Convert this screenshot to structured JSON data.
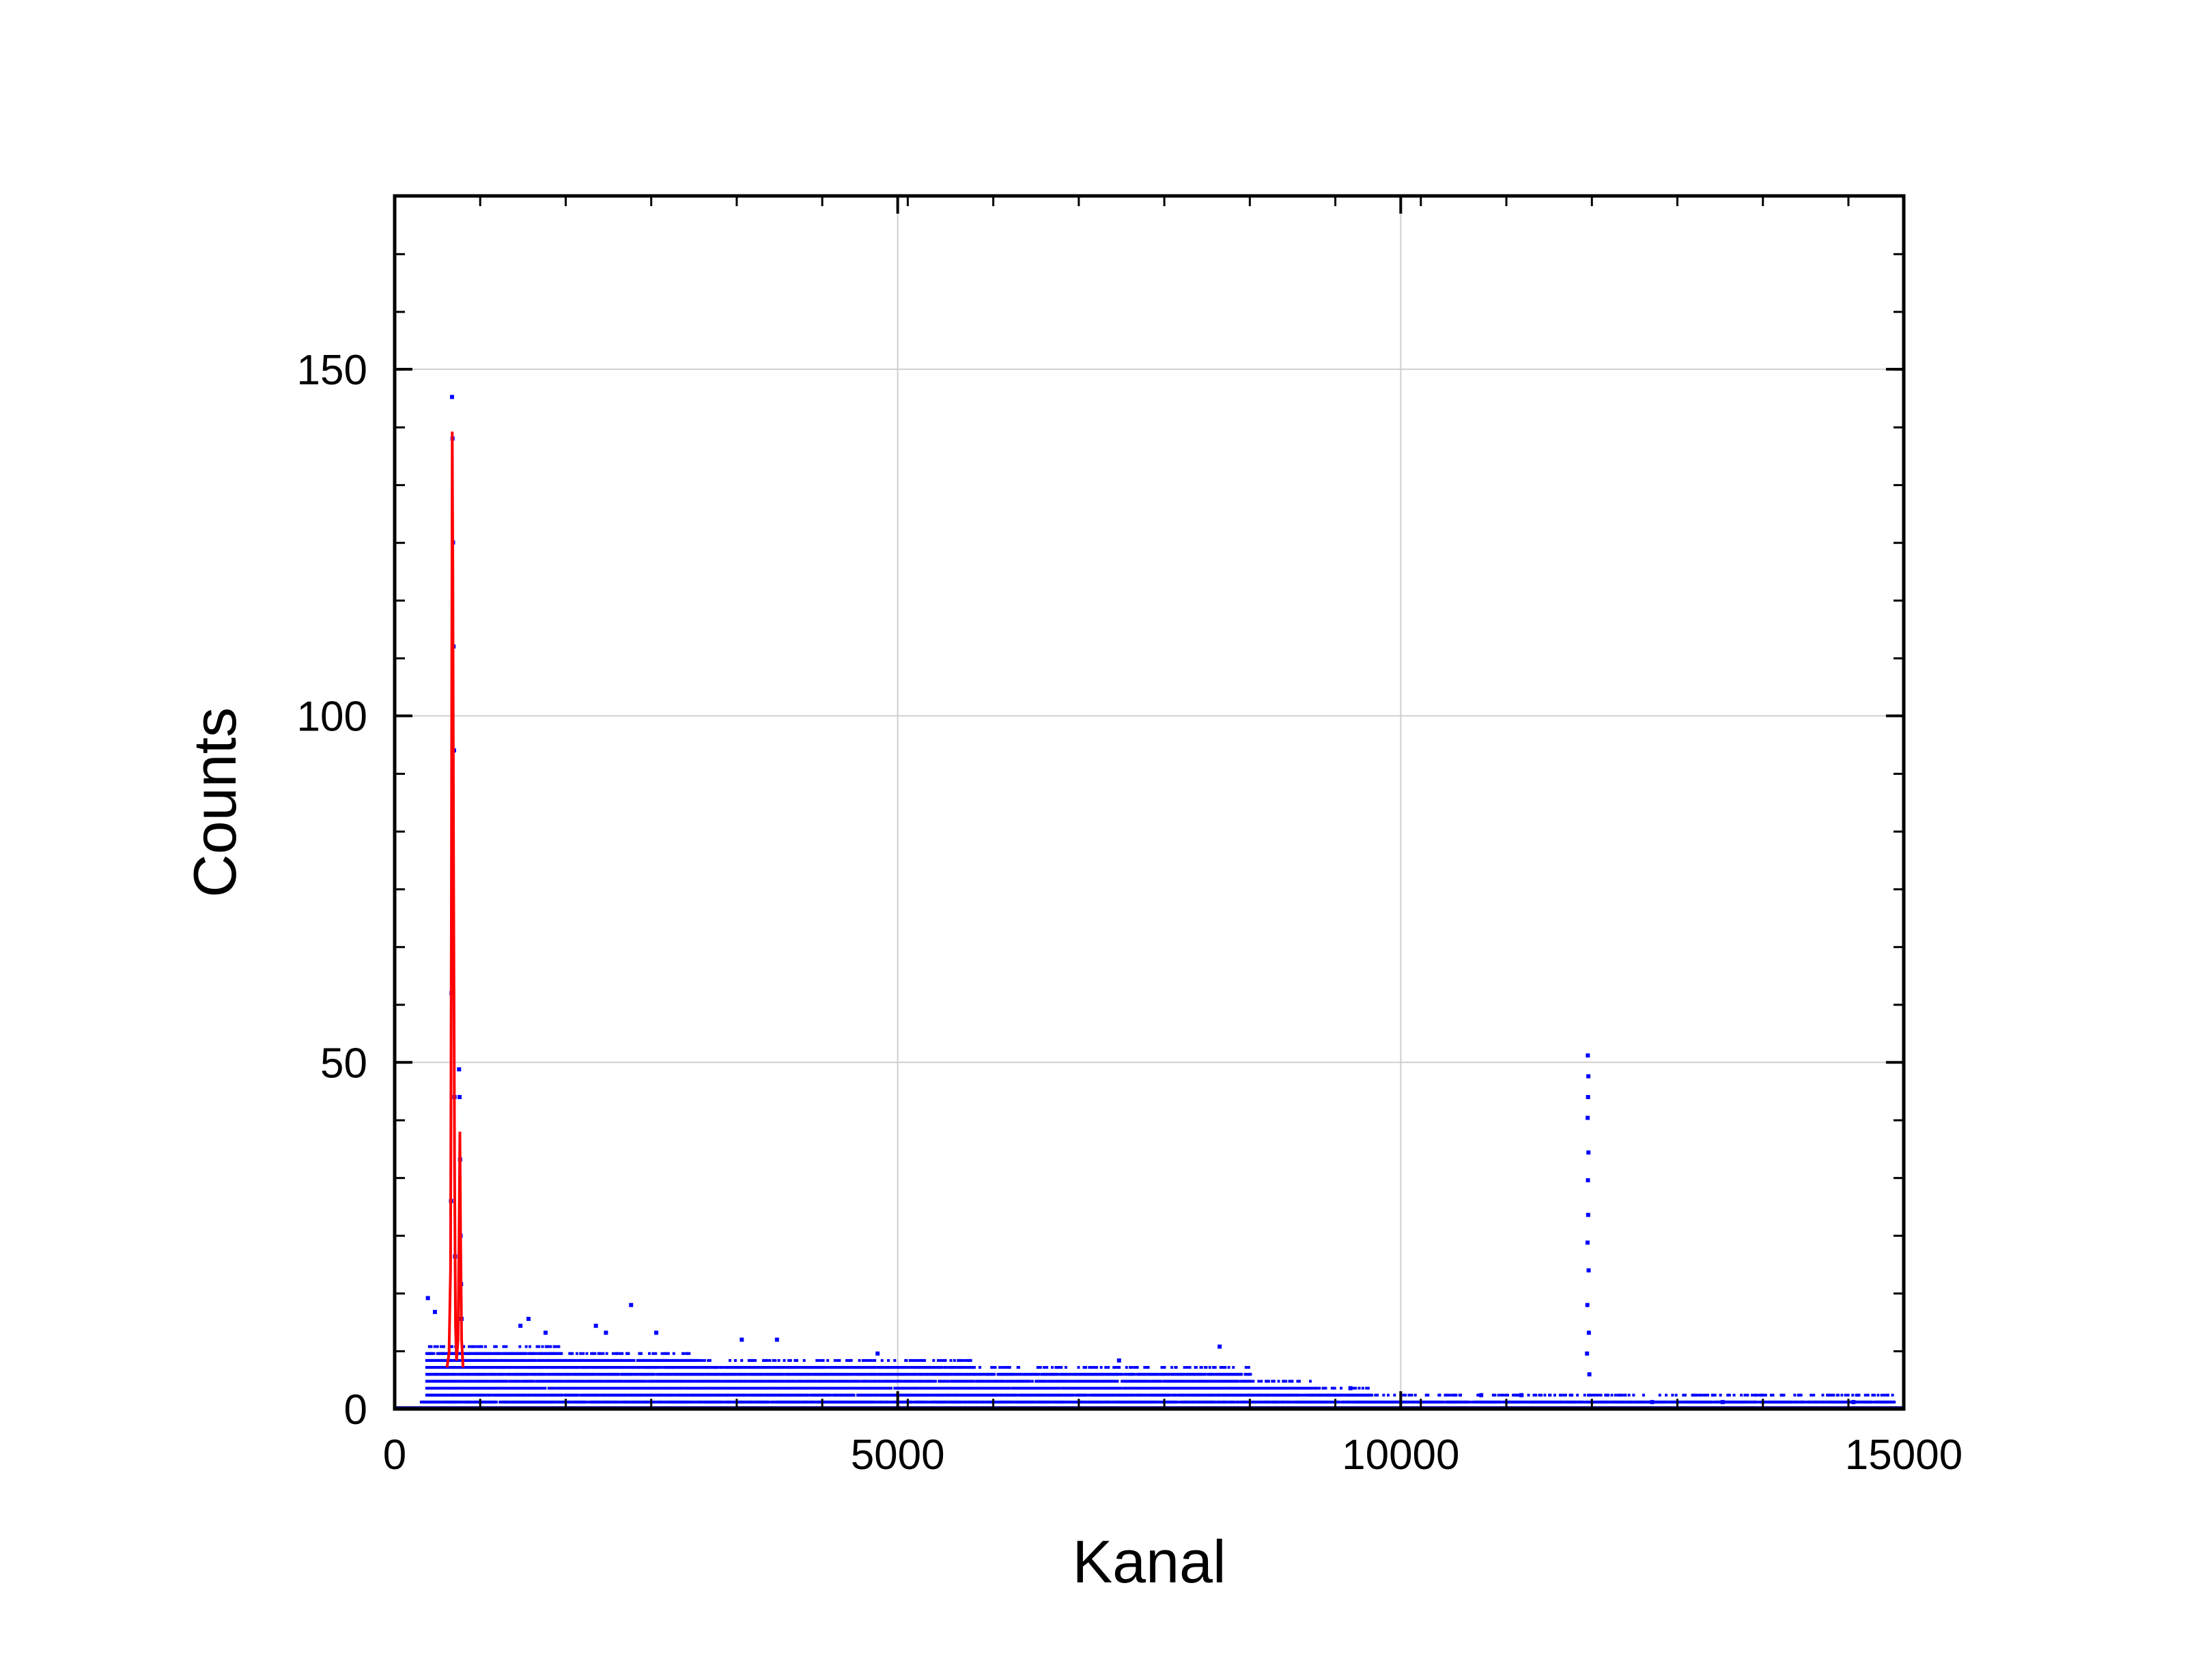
{
  "chart_data": {
    "type": "scatter",
    "xlabel": "Kanal",
    "ylabel": "Counts",
    "xlim": [
      0,
      15000
    ],
    "ylim": [
      0,
      175
    ],
    "x_ticks": [
      0,
      5000,
      10000,
      15000
    ],
    "y_ticks": [
      0,
      50,
      100,
      150
    ],
    "x_tick_labels": [
      "0",
      "5000",
      "10000",
      "15000"
    ],
    "y_tick_labels": [
      "0",
      "50",
      "100",
      "150"
    ],
    "x_minor_step": 850,
    "y_minor_step": 8.33,
    "grid": true,
    "legend": "none",
    "series": [
      {
        "style": "points",
        "color": "#0000ff",
        "description_of_shape": "dense background counts 0-9 decreasing with channel; strong peak near channel 570 reaching about 146; smaller peak near channel 11860 reaching about 51",
        "points": [
          [
            570,
            146
          ],
          [
            575,
            140
          ],
          [
            580,
            125
          ],
          [
            585,
            110
          ],
          [
            590,
            95
          ],
          [
            565,
            60
          ],
          [
            595,
            45
          ],
          [
            560,
            30
          ],
          [
            600,
            22
          ],
          [
            640,
            49
          ],
          [
            645,
            45
          ],
          [
            650,
            36
          ],
          [
            655,
            25
          ],
          [
            660,
            18
          ],
          [
            665,
            13
          ],
          [
            11860,
            51
          ],
          [
            11865,
            48
          ],
          [
            11862,
            45
          ],
          [
            11858,
            42
          ],
          [
            11866,
            37
          ],
          [
            11861,
            33
          ],
          [
            11863,
            28
          ],
          [
            11857,
            24
          ],
          [
            11868,
            20
          ],
          [
            11855,
            15
          ],
          [
            11870,
            11
          ],
          [
            11852,
            8
          ],
          [
            11875,
            5
          ],
          [
            330,
            16
          ],
          [
            400,
            14
          ],
          [
            2350,
            15
          ],
          [
            1330,
            13
          ],
          [
            1250,
            12
          ],
          [
            2000,
            12
          ],
          [
            2100,
            11
          ],
          [
            1500,
            11
          ],
          [
            2600,
            11
          ],
          [
            3450,
            10
          ],
          [
            3800,
            10
          ],
          [
            8200,
            9
          ],
          [
            4800,
            8
          ],
          [
            7200,
            7
          ],
          [
            9500,
            3
          ],
          [
            10800,
            2
          ],
          [
            11200,
            2
          ],
          [
            12500,
            1
          ],
          [
            13200,
            1
          ],
          [
            14500,
            1
          ]
        ]
      },
      {
        "style": "line",
        "color": "#ff0000",
        "points": [
          [
            520,
            6
          ],
          [
            540,
            8
          ],
          [
            555,
            20
          ],
          [
            562,
            60
          ],
          [
            568,
            110
          ],
          [
            572,
            141
          ],
          [
            578,
            120
          ],
          [
            585,
            80
          ],
          [
            595,
            35
          ],
          [
            605,
            12
          ],
          [
            615,
            7
          ],
          [
            630,
            10
          ],
          [
            640,
            25
          ],
          [
            648,
            40
          ],
          [
            655,
            25
          ],
          [
            665,
            10
          ],
          [
            680,
            6
          ]
        ]
      }
    ]
  }
}
